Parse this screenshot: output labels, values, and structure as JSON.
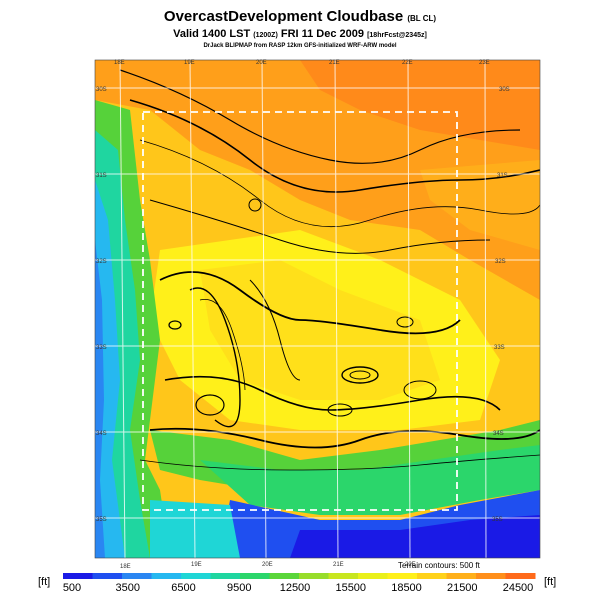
{
  "header": {
    "title": "OvercastDevelopment Cloudbase",
    "title_suffix": "(BL CL)",
    "valid_line": "Valid 1400 LST",
    "valid_code": "(1200Z)",
    "valid_date": "FRI 11 Dec 2009",
    "forecast_info": "[18hrFcst@2345z]",
    "credit_line": "DrJack BLIPMAP from RASP 12km GFS-initialized WRF-ARW model"
  },
  "map": {
    "lon_labels_top": [
      "18E",
      "19E",
      "20E",
      "21E",
      "22E",
      "23E"
    ],
    "lon_labels_bottom": [
      "18E",
      "19E",
      "20E",
      "21E",
      "22E"
    ],
    "lat_labels_left": [
      "30S",
      "31S",
      "32S",
      "33S",
      "34S",
      "35S"
    ],
    "lat_labels_right": [
      "30S",
      "31S",
      "32S",
      "33S",
      "34S",
      "35S"
    ],
    "terrain_note": "Terrain contours: 500 ft"
  },
  "colorbar": {
    "unit_left": "[ft]",
    "unit_right": "[ft]",
    "tick_labels": [
      "500",
      "3500",
      "6500",
      "9500",
      "12500",
      "15500",
      "18500",
      "21500",
      "24500"
    ],
    "colors": [
      "#1a1ae6",
      "#1f4ff0",
      "#2a86f2",
      "#26b8f0",
      "#1fd6d6",
      "#1fd6a0",
      "#2bd66b",
      "#5ad63a",
      "#98dd2a",
      "#c8e61f",
      "#eaf01a",
      "#fff01a",
      "#ffd21a",
      "#ffb01a",
      "#ff8f1a",
      "#ff6a1a"
    ]
  }
}
